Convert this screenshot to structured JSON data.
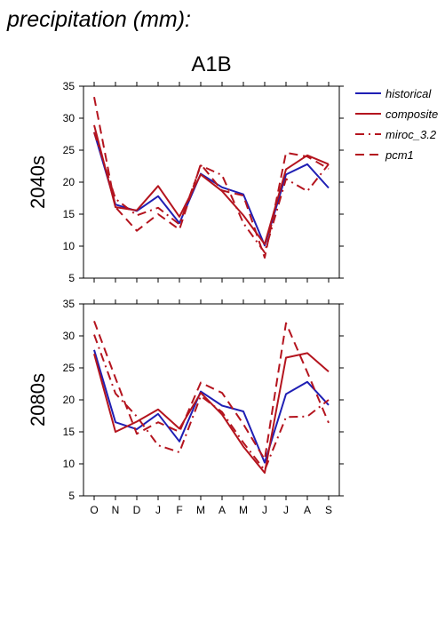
{
  "page_title": "precipitation (mm):",
  "chart_data": {
    "type": "line",
    "title": "A1B",
    "categories": [
      "O",
      "N",
      "D",
      "J",
      "F",
      "M",
      "A",
      "M",
      "J",
      "J",
      "A",
      "S"
    ],
    "ylim": [
      5,
      35
    ],
    "yticks": [
      5,
      10,
      15,
      20,
      25,
      30,
      35
    ],
    "legend": [
      {
        "name": "historical",
        "color": "#1f1fb4",
        "dash": "solid"
      },
      {
        "name": "composite",
        "color": "#b4141e",
        "dash": "solid"
      },
      {
        "name": "miroc_3.2",
        "color": "#b4141e",
        "dash": "dashdot"
      },
      {
        "name": "pcm1",
        "color": "#b4141e",
        "dash": "dashed"
      }
    ],
    "panels": [
      {
        "label": "2040s",
        "series": [
          {
            "name": "historical",
            "values": [
              27.8,
              16.5,
              15.5,
              17.8,
              13.6,
              21.3,
              19.2,
              18.1,
              10.1,
              21.2,
              22.8,
              19.1
            ]
          },
          {
            "name": "composite",
            "values": [
              28.9,
              16.1,
              15.6,
              19.4,
              14.6,
              21.2,
              18.6,
              14.8,
              10.3,
              22.0,
              24.2,
              22.8
            ]
          },
          {
            "name": "miroc_3.2",
            "values": [
              27.8,
              17.4,
              14.8,
              16.0,
              13.4,
              22.6,
              21.1,
              13.6,
              9.0,
              20.5,
              18.6,
              22.8
            ]
          },
          {
            "name": "pcm1",
            "values": [
              33.3,
              16.1,
              12.4,
              15.0,
              12.6,
              22.8,
              18.7,
              17.9,
              8.2,
              24.6,
              24.0,
              22.1
            ]
          }
        ]
      },
      {
        "label": "2080s",
        "series": [
          {
            "name": "historical",
            "values": [
              27.8,
              16.5,
              15.4,
              17.8,
              13.5,
              21.3,
              19.1,
              18.2,
              10.2,
              20.9,
              22.8,
              19.2
            ]
          },
          {
            "name": "composite",
            "values": [
              27.2,
              15.0,
              16.6,
              18.5,
              15.5,
              21.1,
              17.7,
              12.7,
              8.6,
              26.6,
              27.3,
              24.4
            ]
          },
          {
            "name": "miroc_3.2",
            "values": [
              30.2,
              21.0,
              17.4,
              12.9,
              11.8,
              20.6,
              18.1,
              13.3,
              9.0,
              17.3,
              17.4,
              20.0
            ]
          },
          {
            "name": "pcm1",
            "values": [
              32.3,
              23.4,
              14.7,
              16.5,
              15.0,
              22.7,
              21.1,
              16.2,
              10.7,
              32.0,
              24.3,
              16.4
            ]
          }
        ]
      }
    ]
  }
}
